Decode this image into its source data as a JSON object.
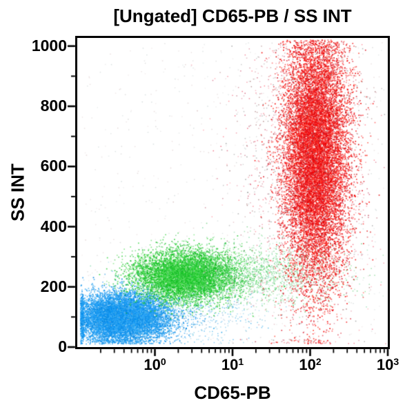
{
  "page": {
    "background_color": "#ffffff"
  },
  "chart_data": {
    "type": "scatter",
    "subtype": "flow-cytometry-dot-plot",
    "title": "[Ungated] CD65-PB / SS INT",
    "xlabel": "CD65-PB",
    "ylabel": "SS INT",
    "x_scale": "log10",
    "x_domain_exponents": [
      -1,
      3
    ],
    "x_tick_base": "10",
    "x_tick_exponents": [
      0,
      1,
      2,
      3
    ],
    "y_scale": "linear",
    "y_domain": [
      0,
      1027
    ],
    "y_major_ticks": [
      0,
      200,
      400,
      600,
      800,
      1000
    ],
    "y_minor_step": 100,
    "grid": false,
    "legend": "none",
    "axis_color": "#000000",
    "background_color": "#ffffff",
    "populations": [
      {
        "name": "blue-low-ss-cluster",
        "color": "#0d97f5",
        "palette": [
          "#0d97f5",
          "#2ea6f7",
          "#0787e0",
          "#45b1f2",
          "#1090ee"
        ],
        "count": 9500,
        "distribution": "gaussian",
        "x_log10_mean": -0.43,
        "x_log10_sd": 0.3,
        "x_center": 0.37,
        "y_mean": 100,
        "y_sd": 40,
        "pile_left": true,
        "dot_size": 1.7,
        "alpha_range": [
          0.5,
          1.0
        ]
      },
      {
        "name": "blue-right-tail",
        "color": "#2aa6e8",
        "palette": [
          "#2aa6e8",
          "#55bbdd",
          "#1f9ce8",
          "#77a8c8"
        ],
        "count": 800,
        "distribution": "gaussian",
        "x_log10_mean": 0.3,
        "x_log10_sd": 0.5,
        "x_center": 2.0,
        "y_mean": 115,
        "y_sd": 55,
        "pile_left": false,
        "dot_size": 1.5,
        "alpha_range": [
          0.3,
          0.75
        ]
      },
      {
        "name": "green-mid-ss-cluster",
        "color": "#12c422",
        "palette": [
          "#12c422",
          "#38d844",
          "#0cb31e",
          "#5fdd5f",
          "#26cc33"
        ],
        "count": 7000,
        "distribution": "gaussian",
        "x_log10_mean": 0.38,
        "x_log10_sd": 0.33,
        "x_center": 2.4,
        "y_mean": 238,
        "y_sd": 42,
        "pile_left": false,
        "dot_size": 1.7,
        "alpha_range": [
          0.45,
          0.95
        ]
      },
      {
        "name": "green-right-tail",
        "color": "#2cc43c",
        "palette": [
          "#2cc43c",
          "#55cc88",
          "#3cbf55",
          "#88d8a0"
        ],
        "count": 1600,
        "distribution": "gaussian",
        "x_log10_mean": 1.35,
        "x_log10_sd": 0.55,
        "x_center": 22,
        "y_mean": 246,
        "y_sd": 52,
        "pile_left": false,
        "dot_size": 1.5,
        "alpha_range": [
          0.3,
          0.7
        ]
      },
      {
        "name": "red-high-ss-cd65pos-cluster",
        "color": "#f30000",
        "palette": [
          "#f30000",
          "#ff2222",
          "#e00000",
          "#d81020",
          "#ff4433"
        ],
        "count": 14000,
        "distribution": "gaussian",
        "x_log10_mean": 2.06,
        "x_log10_sd": 0.21,
        "x_center": 115,
        "y_mean": 645,
        "y_sd": 215,
        "pile_left": false,
        "dot_size": 1.7,
        "alpha_range": [
          0.5,
          1.0
        ]
      },
      {
        "name": "red-fringe-scatter",
        "color": "#e83050",
        "palette": [
          "#e83050",
          "#c43052",
          "#ff5566",
          "#8a4a4a",
          "#777777",
          "#bb6677"
        ],
        "count": 2000,
        "distribution": "gaussian",
        "x_log10_mean": 1.93,
        "x_log10_sd": 0.45,
        "x_center": 85,
        "y_mean": 620,
        "y_sd": 285,
        "pile_left": false,
        "dot_size": 1.5,
        "alpha_range": [
          0.3,
          0.7
        ]
      },
      {
        "name": "background-debris",
        "color": "#c3c3c3",
        "palette": [
          "#c3c3c3",
          "#d2bcbc",
          "#b9c6c6",
          "#dccccc"
        ],
        "count": 600,
        "distribution": "uniform",
        "x_log10_range": [
          -0.95,
          2.95
        ],
        "y_range": [
          15,
          1015
        ],
        "pile_left": false,
        "dot_size": 1.5,
        "alpha_range": [
          0.25,
          0.6
        ]
      }
    ]
  }
}
